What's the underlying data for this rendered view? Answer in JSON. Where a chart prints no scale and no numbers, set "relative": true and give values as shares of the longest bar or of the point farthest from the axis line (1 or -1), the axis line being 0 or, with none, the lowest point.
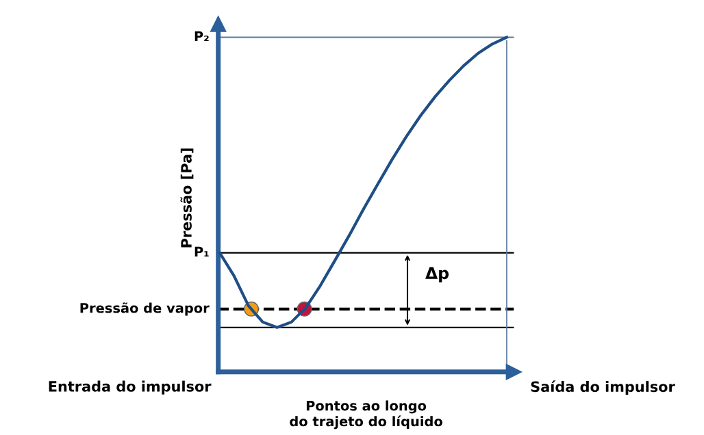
{
  "chart_data": {
    "type": "line",
    "relative": true,
    "xlabel": "Pontos ao longo\ndo trajeto do líquido",
    "ylabel": "Pressão [Pa]",
    "categories": [
      null,
      null,
      null,
      null,
      null,
      null,
      null,
      null,
      null,
      null,
      null,
      null,
      null,
      null,
      null,
      null,
      null,
      null,
      null,
      null,
      null
    ],
    "series": [
      {
        "color": "#1f4e85",
        "values": [
          0.356,
          0.287,
          0.198,
          0.149,
          0.133,
          0.149,
          0.192,
          0.257,
          0.331,
          0.406,
          0.485,
          0.56,
          0.634,
          0.703,
          0.766,
          0.822,
          0.871,
          0.915,
          0.952,
          0.98,
          1.0
        ]
      }
    ],
    "ref_lines": [
      {
        "axis": "y",
        "value": 1.0,
        "label": "P₂",
        "color": "#5a7a9a",
        "line_style": "solid"
      },
      {
        "axis": "y",
        "value": 0.356,
        "label": "P₁",
        "color": "#000000",
        "line_style": "solid"
      },
      {
        "axis": "y",
        "value": 0.188,
        "label": "Pressão de vapor",
        "color": "#000000",
        "line_style": "dashed"
      },
      {
        "axis": "y",
        "value": 0.133,
        "label": null,
        "color": "#000000",
        "line_style": "solid"
      }
    ],
    "annotations": [
      "Entrada do impulsor",
      "Saída do impulsor",
      "Δp"
    ]
  }
}
